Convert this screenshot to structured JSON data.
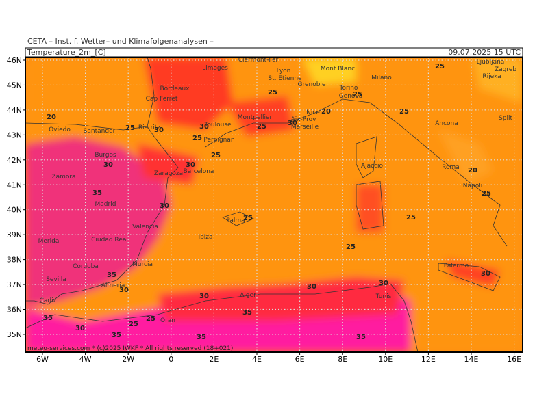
{
  "header": {
    "source": "CETA – Inst. f. Wetter– und Klimafolgenanalysen –",
    "title": "Temperature_2m_[C]",
    "date": "09.07.2025 15 UTC"
  },
  "lat_labels": [
    "46N",
    "45N",
    "44N",
    "43N",
    "42N",
    "41N",
    "40N",
    "39N",
    "38N",
    "37N",
    "36N",
    "35N"
  ],
  "lon_labels": [
    "6W",
    "4W",
    "2W",
    "0",
    "2E",
    "4E",
    "6E",
    "8E",
    "10E",
    "12E",
    "14E",
    "16E"
  ],
  "cities": [
    "Clermont-Fer",
    "Limoges",
    "Lyon",
    "St. Etienne",
    "Grenoble",
    "Mont Blanc",
    "Torino",
    "Genova",
    "Milano",
    "Bordeaux",
    "Cap Ferret",
    "Montpellier",
    "Toulouse",
    "Nice",
    "Aix-Prov",
    "Marseille",
    "Biarritz",
    "Perpignan",
    "Oviedo",
    "Santander",
    "Burgos",
    "Zaragoza",
    "Barcelona",
    "Zamora",
    "Madrid",
    "Valencia",
    "Palma",
    "Ibiza",
    "Merida",
    "Ciudad Real",
    "Cordoba",
    "Murcia",
    "Almeria",
    "Sevilla",
    "Cadiz",
    "Alger",
    "Oran",
    "Tunis",
    "Ajaccio",
    "Ancona",
    "Split",
    "Roma",
    "Napoli",
    "Palermo",
    "Zagreb",
    "Ljubljana",
    "Rijeka"
  ],
  "contours": [
    25,
    25,
    25,
    20,
    25,
    20,
    25,
    30,
    30,
    25,
    30,
    25,
    25,
    30,
    30,
    20,
    35,
    25,
    30,
    25,
    25,
    25,
    35,
    30,
    30,
    30,
    30,
    35,
    35,
    30,
    25,
    25,
    35,
    35,
    35,
    30
  ],
  "footer": "meteo-services.com * (c)2025 IWKF * All rights reserved (18+021)"
}
